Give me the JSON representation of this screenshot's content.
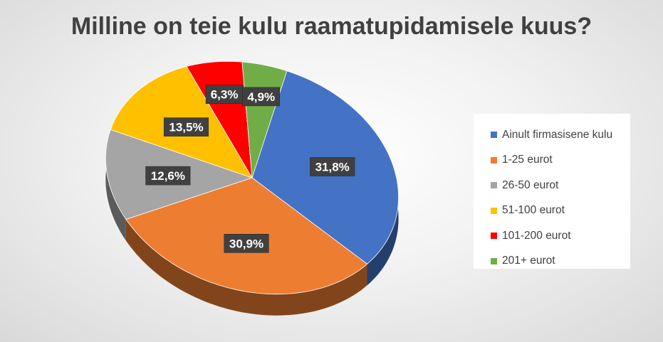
{
  "chart_data": {
    "type": "pie",
    "title": "Milline on teie kulu raamatupidamisele kuus?",
    "legend_position": "right",
    "slices": [
      {
        "label": "Ainult firmasisene kulu",
        "value": 31.8,
        "data_label": "31,8%",
        "color": "#4472C4"
      },
      {
        "label": "1-25 eurot",
        "value": 30.9,
        "data_label": "30,9%",
        "color": "#ED7D31"
      },
      {
        "label": "26-50 eurot",
        "value": 12.6,
        "data_label": "12,6%",
        "color": "#A5A5A5"
      },
      {
        "label": "51-100 eurot",
        "value": 13.5,
        "data_label": "13,5%",
        "color": "#FFC000"
      },
      {
        "label": "101-200 eurot",
        "value": 6.3,
        "data_label": "6,3%",
        "color": "#FF0000"
      },
      {
        "label": "201+ eurot",
        "value": 4.9,
        "data_label": "4,9%",
        "color": "#70AD47"
      }
    ]
  }
}
